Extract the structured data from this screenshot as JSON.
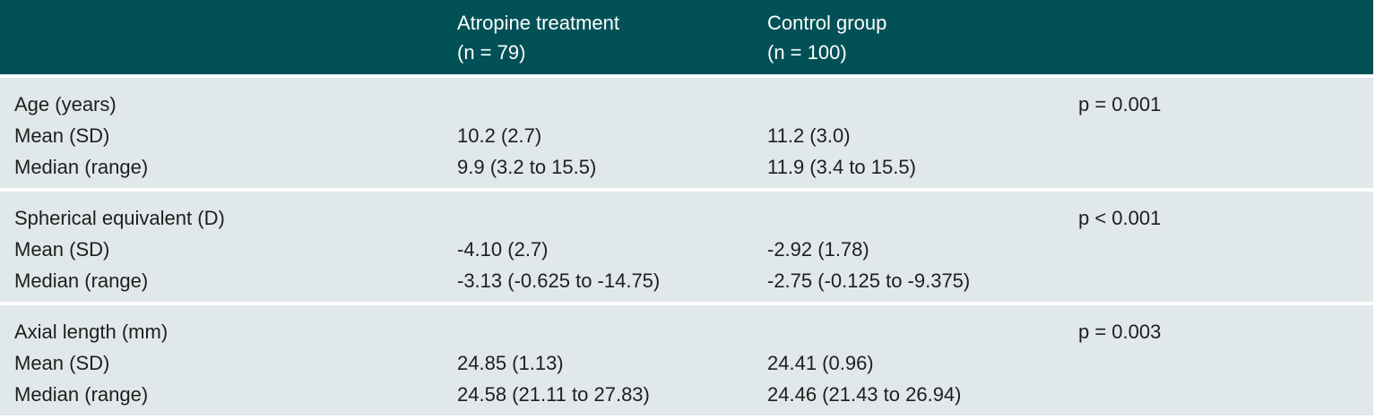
{
  "header": {
    "col_atropine": {
      "line1": "Atropine treatment",
      "line2": "(n = 79)"
    },
    "col_control": {
      "line1": "Control group",
      "line2": "(n = 100)"
    }
  },
  "groups": [
    {
      "title": "Age (years)",
      "p_value": "p = 0.001",
      "mean_label": "Mean (SD)",
      "mean_atropine": "10.2 (2.7)",
      "mean_control": "11.2 (3.0)",
      "median_label": "Median (range)",
      "median_atropine": "9.9 (3.2 to 15.5)",
      "median_control": "11.9 (3.4 to 15.5)"
    },
    {
      "title": "Spherical equivalent (D)",
      "p_value": "p < 0.001",
      "mean_label": "Mean (SD)",
      "mean_atropine": "-4.10 (2.7)",
      "mean_control": "-2.92 (1.78)",
      "median_label": "Median (range)",
      "median_atropine": "-3.13 (-0.625 to -14.75)",
      "median_control": "-2.75 (-0.125 to -9.375)"
    },
    {
      "title": "Axial length (mm)",
      "p_value": "p = 0.003",
      "mean_label": "Mean (SD)",
      "mean_atropine": "24.85 (1.13)",
      "mean_control": "24.41 (0.96)",
      "median_label": "Median (range)",
      "median_atropine": "24.58 (21.11 to 27.83)",
      "median_control": "24.46 (21.43 to 26.94)"
    }
  ]
}
